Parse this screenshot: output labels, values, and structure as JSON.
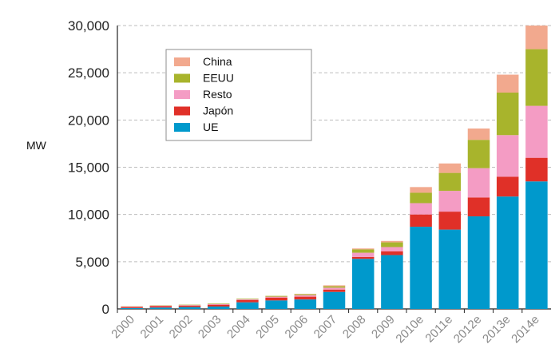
{
  "chart_data": {
    "type": "bar",
    "stacked": true,
    "ylabel": "MW",
    "ylim": [
      0,
      30000
    ],
    "yticks": [
      "0",
      "5,000",
      "10,000",
      "15,000",
      "20,000",
      "25,000",
      "30,000"
    ],
    "grid": true,
    "legend_position": "top-left",
    "categories": [
      "2000",
      "2001",
      "2002",
      "2003",
      "2004",
      "2005",
      "2006",
      "2007",
      "2008",
      "2009",
      "2010e",
      "2011e",
      "2012e",
      "2013e",
      "2014e"
    ],
    "series": [
      {
        "name": "UE",
        "color": "#0099cc",
        "values": [
          100,
          150,
          200,
          250,
          700,
          900,
          1000,
          1800,
          5300,
          5700,
          8700,
          8400,
          9800,
          11900,
          13500
        ]
      },
      {
        "name": "Japón",
        "color": "#e03028",
        "values": [
          120,
          150,
          150,
          200,
          250,
          300,
          300,
          250,
          200,
          400,
          1300,
          1900,
          2000,
          2100,
          2500
        ]
      },
      {
        "name": "Resto",
        "color": "#f49cc4",
        "values": [
          30,
          50,
          60,
          70,
          80,
          100,
          150,
          200,
          450,
          450,
          1200,
          2200,
          3100,
          4400,
          5500
        ]
      },
      {
        "name": "EEUU",
        "color": "#a8b42c",
        "values": [
          20,
          30,
          40,
          50,
          60,
          80,
          100,
          150,
          350,
          500,
          1100,
          1900,
          3000,
          4500,
          6000
        ]
      },
      {
        "name": "China",
        "color": "#f2a98e",
        "values": [
          0,
          0,
          0,
          0,
          0,
          0,
          50,
          100,
          100,
          150,
          600,
          1000,
          1200,
          1900,
          2500
        ]
      }
    ],
    "legend_order": [
      "China",
      "EEUU",
      "Resto",
      "Japón",
      "UE"
    ]
  }
}
